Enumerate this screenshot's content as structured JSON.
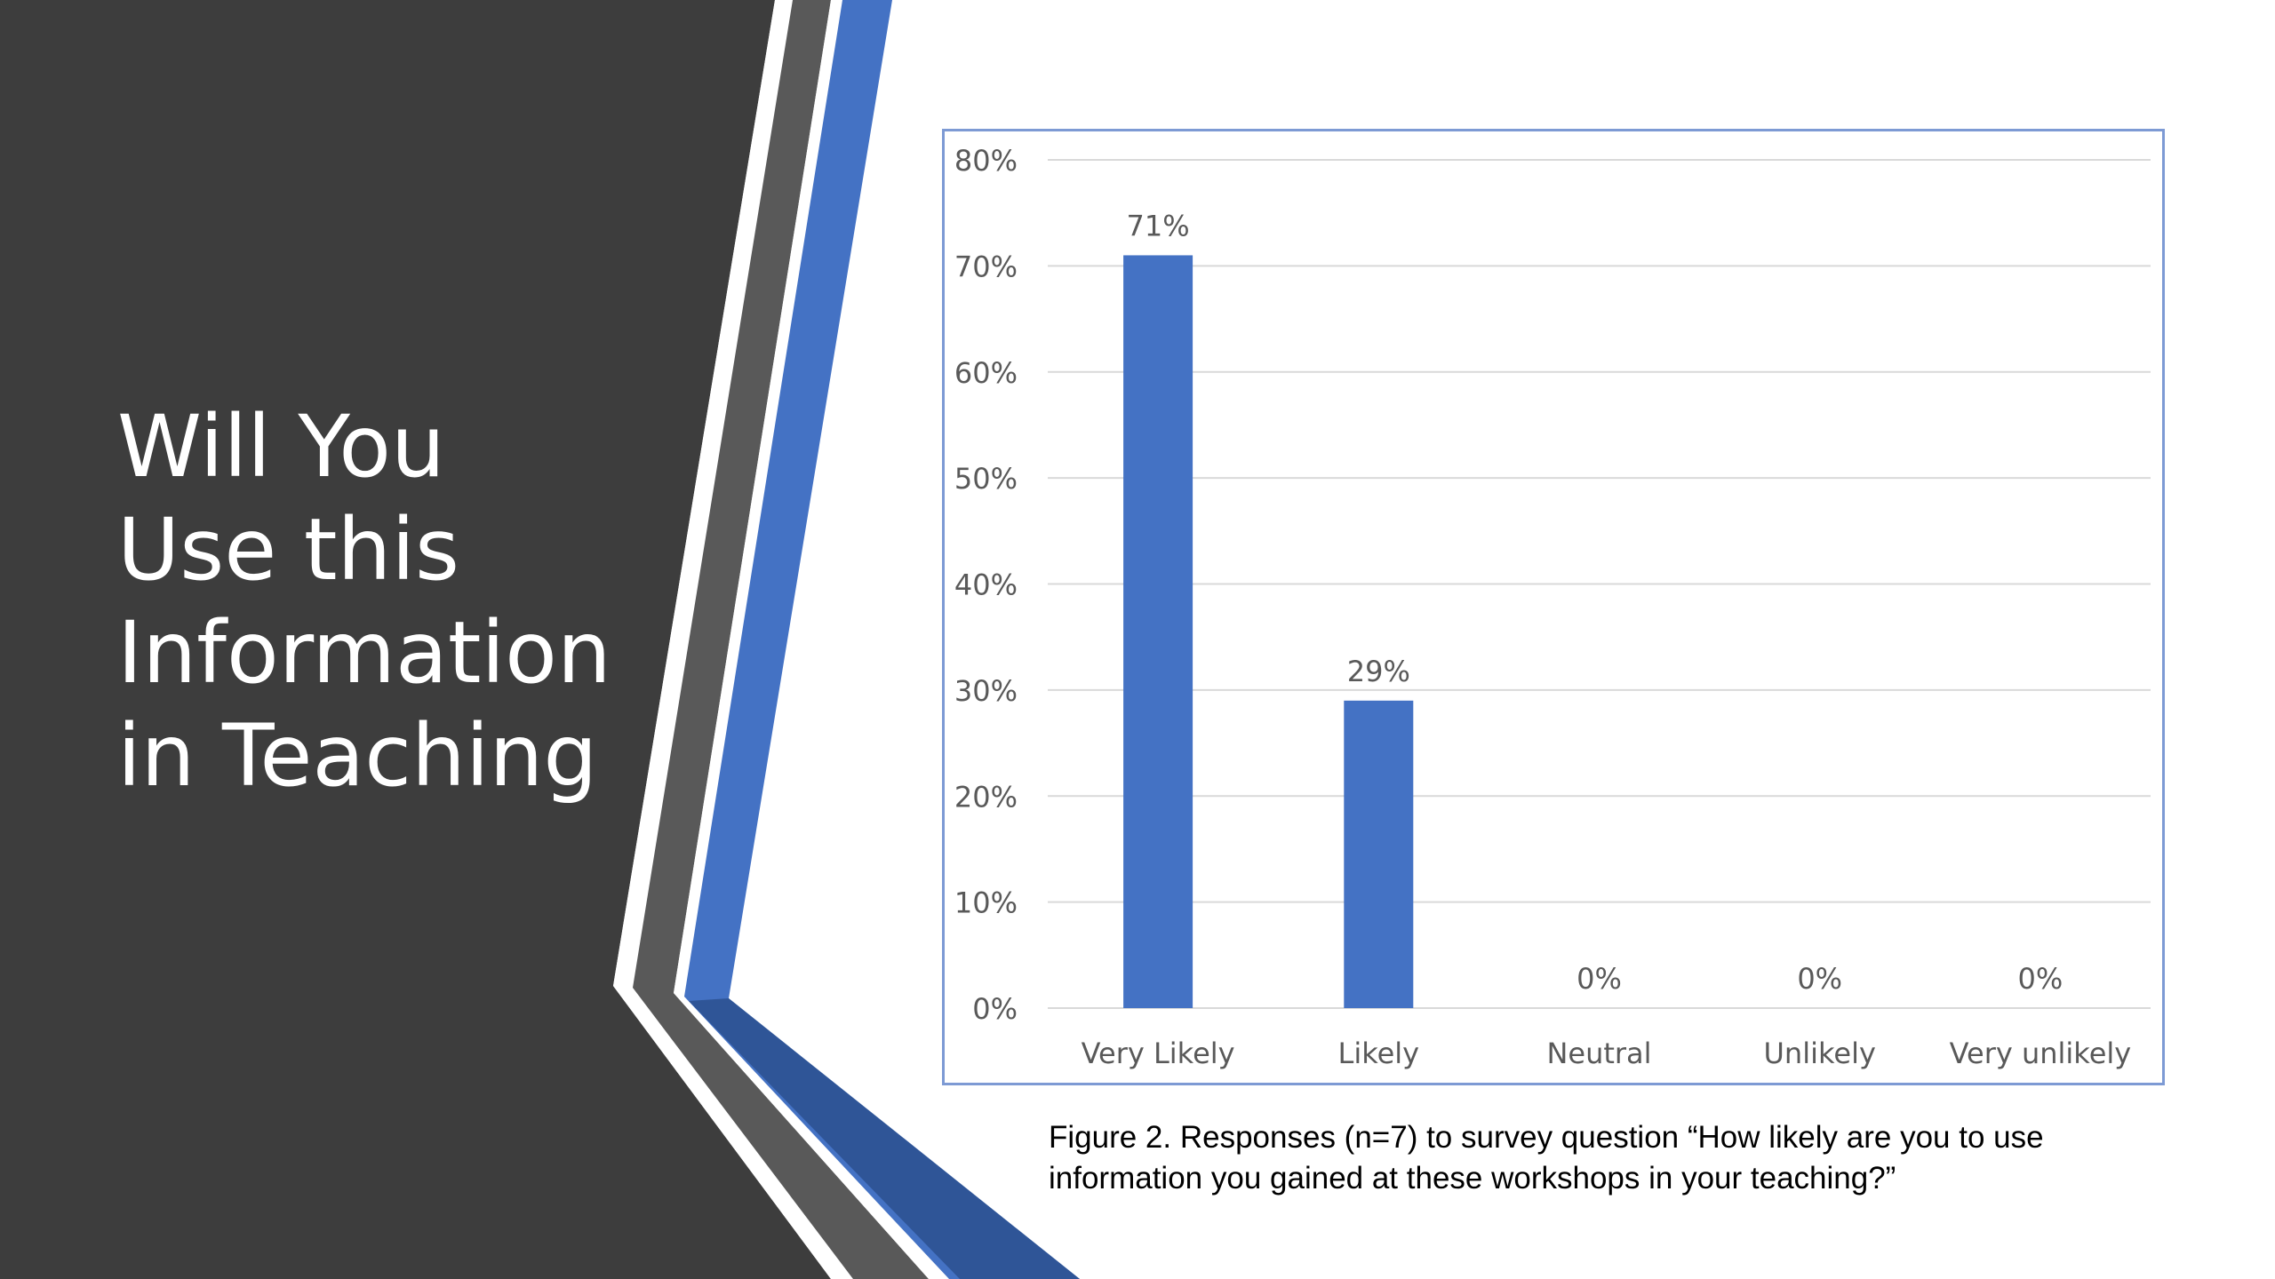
{
  "slide": {
    "title_lines": [
      "Will You",
      "Use this",
      "Information",
      "in Teaching"
    ],
    "background_color": "#3d3d3d",
    "accent_color": "#4472c4",
    "stripe_color": "#595959"
  },
  "caption": {
    "line1": "Figure 2.  Responses (n=7) to survey question “How likely are you to use",
    "line2": "information you gained at these workshops in your teaching?”"
  },
  "chart_data": {
    "type": "bar",
    "categories": [
      "Very Likely",
      "Likely",
      "Neutral",
      "Unlikely",
      "Very unlikely"
    ],
    "values": [
      71,
      29,
      0,
      0,
      0
    ],
    "data_labels": [
      "71%",
      "29%",
      "0%",
      "0%",
      "0%"
    ],
    "yticks": [
      "0%",
      "10%",
      "20%",
      "30%",
      "40%",
      "50%",
      "60%",
      "70%",
      "80%"
    ],
    "ylim": [
      0,
      80
    ],
    "grid": true,
    "legend": "none",
    "bar_color": "#4472c4",
    "gridline_color": "#d9d9d9",
    "border_color": "#7d9ad4"
  }
}
